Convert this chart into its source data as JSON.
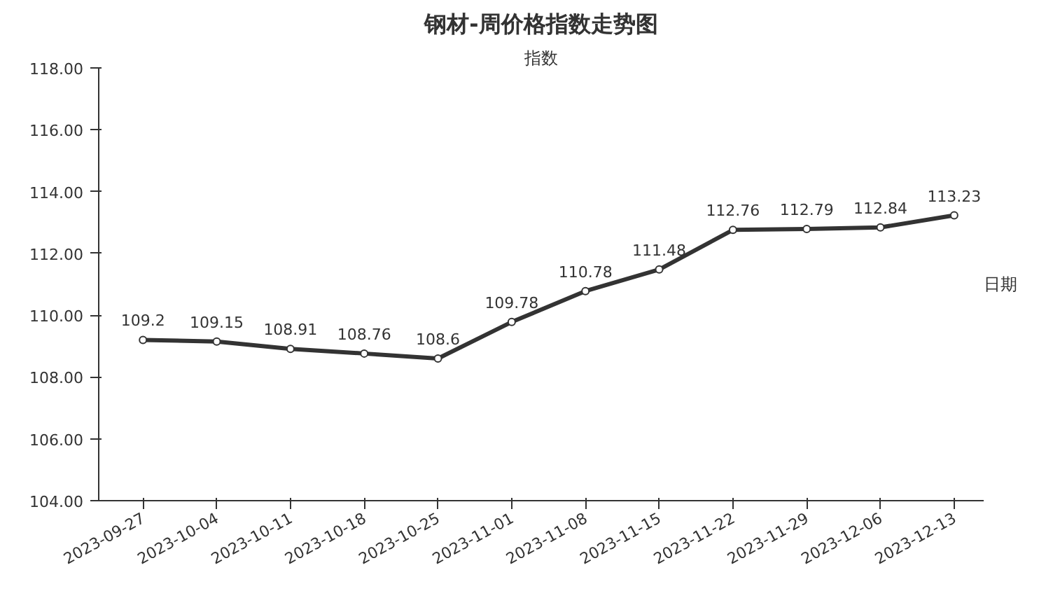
{
  "chart_data": {
    "type": "line",
    "title": "钢材-周价格指数走势图",
    "xlabel": "日期",
    "ylabel": "指数",
    "categories": [
      "2023-09-27",
      "2023-10-04",
      "2023-10-11",
      "2023-10-18",
      "2023-10-25",
      "2023-11-01",
      "2023-11-08",
      "2023-11-15",
      "2023-11-22",
      "2023-11-29",
      "2023-12-06",
      "2023-12-13"
    ],
    "series": [
      {
        "color": "#333333",
        "values": [
          109.2,
          109.15,
          108.91,
          108.76,
          108.6,
          109.78,
          110.78,
          111.48,
          112.76,
          112.79,
          112.84,
          113.23
        ]
      }
    ],
    "ylim": [
      104,
      118
    ],
    "yticks": [
      {
        "value": 104,
        "label": "104.00"
      },
      {
        "value": 106,
        "label": "106.00"
      },
      {
        "value": 108,
        "label": "108.00"
      },
      {
        "value": 110,
        "label": "110.00"
      },
      {
        "value": 112,
        "label": "112.00"
      },
      {
        "value": 114,
        "label": "114.00"
      },
      {
        "value": 116,
        "label": "116.00"
      },
      {
        "value": 118,
        "label": "118.00"
      }
    ],
    "data_labels": true,
    "marker": "circle",
    "line_style": "solid",
    "grid": false
  }
}
